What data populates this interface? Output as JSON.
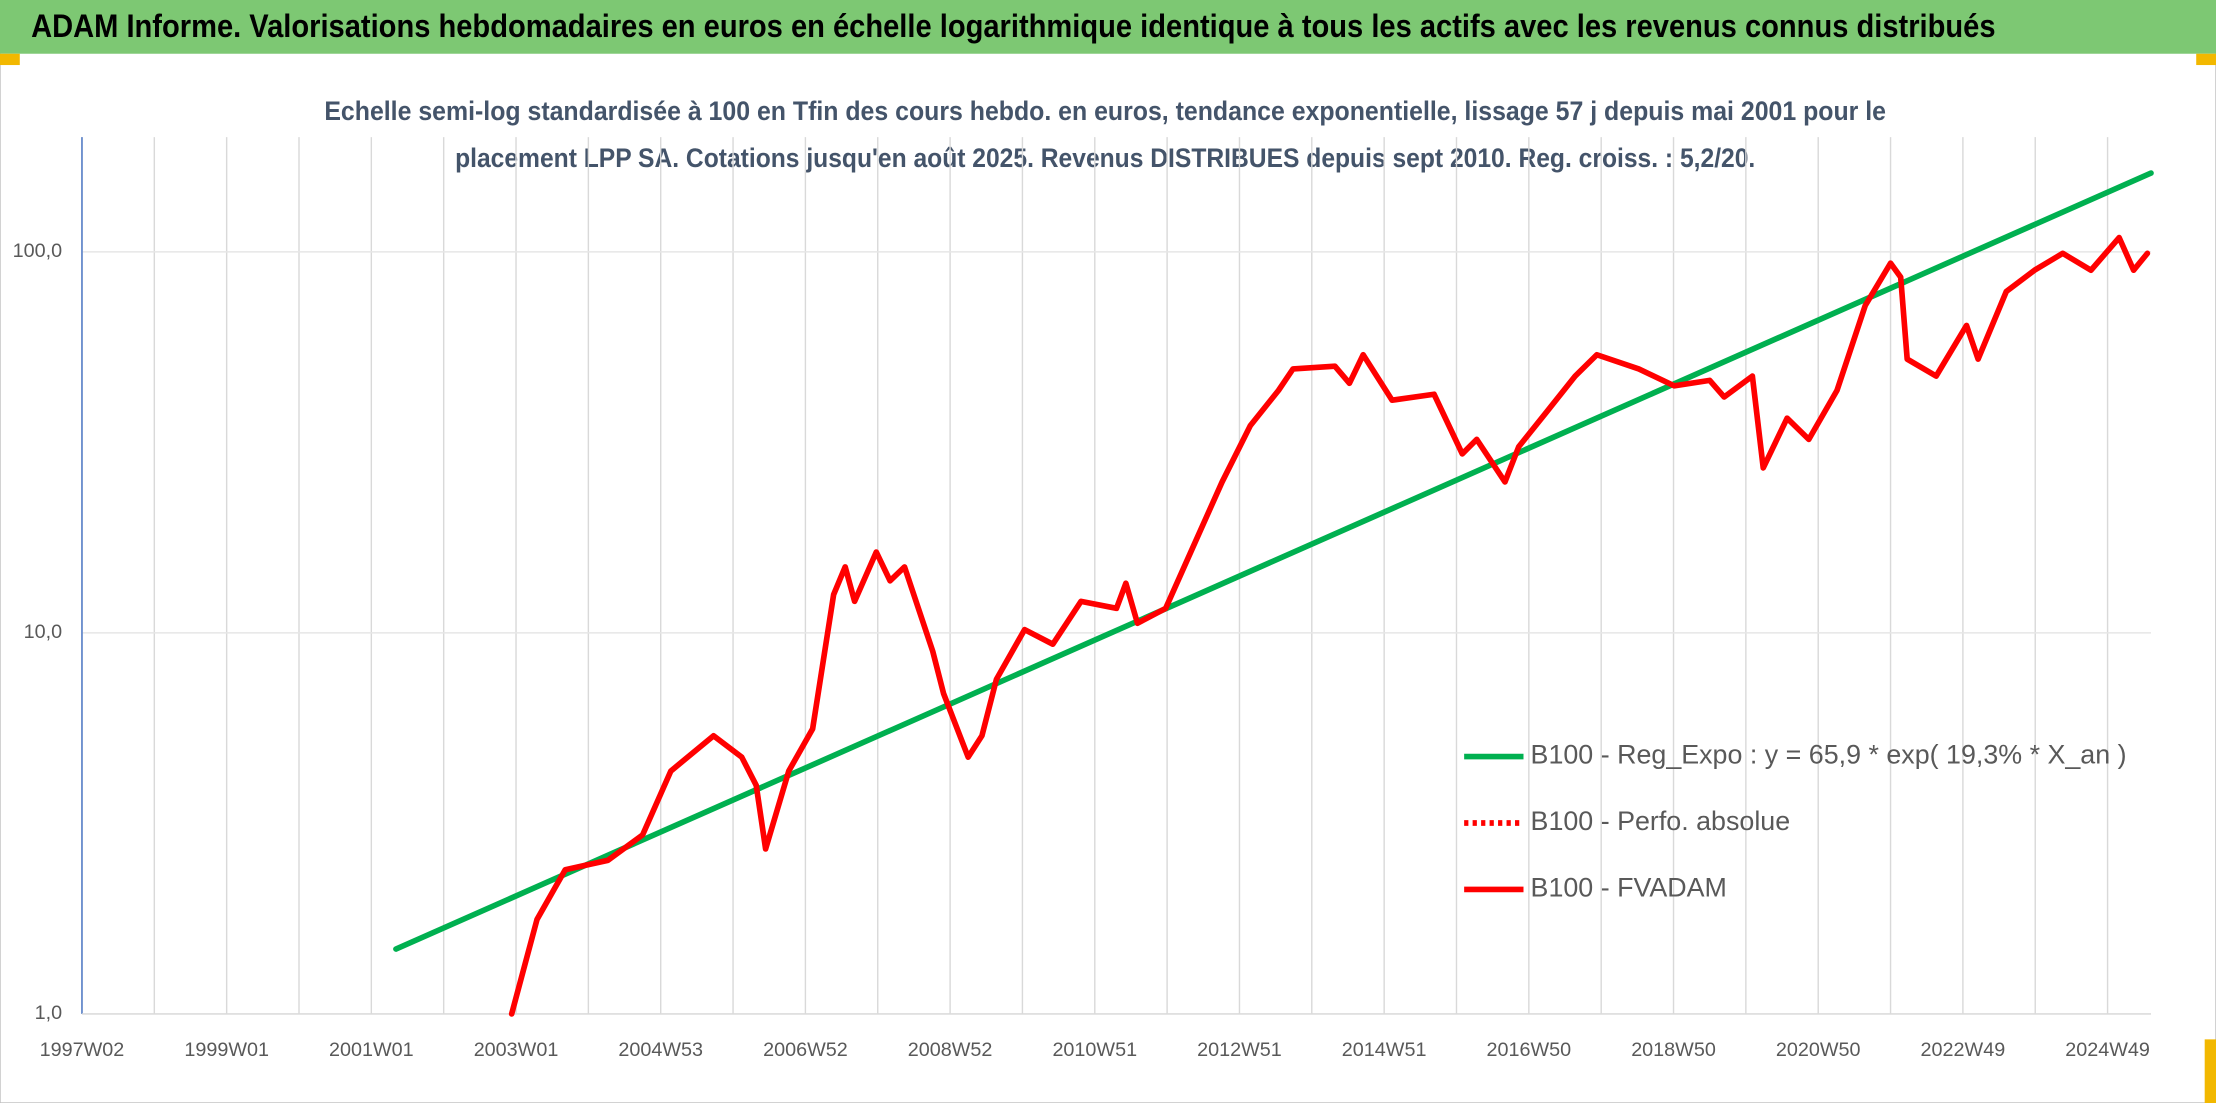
{
  "chart_data": {
    "type": "line",
    "title": "ADAM Informe. Valorisations hebdomadaires en euros en échelle logarithmique identique à tous les actifs avec les revenus connus distribués",
    "subtitle": [
      "Echelle semi-log standardisée à 100 en Tfin des cours hebdo. en euros, tendance exponentielle, lissage 57 j depuis mai 2001 pour le",
      "placement LPP SA. Cotations jusqu'en août 2025. Revenus DISTRIBUES depuis sept 2010. Reg. croiss. : 5,2/20."
    ],
    "log_scale": true,
    "grid": true,
    "legend": "right",
    "xlim": [
      1997.0,
      2025.6
    ],
    "xticks": [
      {
        "value": 1997,
        "label": "1997W02"
      },
      {
        "value": 1999,
        "label": "1999W01"
      },
      {
        "value": 2001,
        "label": "2001W01"
      },
      {
        "value": 2003,
        "label": "2003W01"
      },
      {
        "value": 2005,
        "label": "2004W53"
      },
      {
        "value": 2007,
        "label": "2006W52"
      },
      {
        "value": 2009,
        "label": "2008W52"
      },
      {
        "value": 2011,
        "label": "2010W51"
      },
      {
        "value": 2013,
        "label": "2012W51"
      },
      {
        "value": 2015,
        "label": "2014W51"
      },
      {
        "value": 2017,
        "label": "2016W50"
      },
      {
        "value": 2019,
        "label": "2018W50"
      },
      {
        "value": 2021,
        "label": "2020W50"
      },
      {
        "value": 2023,
        "label": "2022W49"
      },
      {
        "value": 2025,
        "label": "2024W49"
      }
    ],
    "xgrid": [
      1998,
      2000,
      2002,
      2004,
      2006,
      2008,
      2010,
      2012,
      2014,
      2016,
      2018,
      2020,
      2022,
      2024
    ],
    "ylim": [
      1,
      200
    ],
    "yticks": [
      {
        "value": 1,
        "label": "1,0"
      },
      {
        "value": 10,
        "label": "10,0"
      },
      {
        "value": 100,
        "label": "100,0"
      }
    ],
    "series": [
      {
        "name": "B100 - Reg_Expo : y = 65,9 * exp( 19,3% *  X_an )",
        "color": "#00b050",
        "style": "solid",
        "x": [
          2001.34,
          2025.6
        ],
        "values": [
          1.48,
          161
        ]
      },
      {
        "name": "B100 - Perfo. absolue",
        "color": "#ff0000",
        "style": "dotted",
        "x": [],
        "values": []
      },
      {
        "name": "B100 - FVADAM",
        "color": "#ff0000",
        "style": "solid",
        "x": [
          2002.94,
          2003.29,
          2003.68,
          2004.27,
          2004.75,
          2005.14,
          2005.73,
          2006.12,
          2006.32,
          2006.45,
          2006.77,
          2007.1,
          2007.39,
          2007.55,
          2007.68,
          2007.98,
          2008.17,
          2008.37,
          2008.76,
          2008.91,
          2009.25,
          2009.44,
          2009.64,
          2010.03,
          2010.42,
          2010.81,
          2011.3,
          2011.43,
          2011.59,
          2011.98,
          2012.37,
          2012.76,
          2013.15,
          2013.54,
          2013.74,
          2014.32,
          2014.52,
          2014.71,
          2015.11,
          2015.69,
          2016.08,
          2016.28,
          2016.67,
          2016.86,
          2017.25,
          2017.64,
          2017.94,
          2018.52,
          2019.01,
          2019.5,
          2019.7,
          2020.09,
          2020.24,
          2020.57,
          2020.87,
          2021.26,
          2021.65,
          2022.0,
          2022.14,
          2022.23,
          2022.63,
          2023.05,
          2023.21,
          2023.6,
          2023.99,
          2024.38,
          2024.77,
          2025.16,
          2025.36,
          2025.55
        ],
        "values": [
          1.0,
          1.77,
          2.39,
          2.53,
          2.95,
          4.34,
          5.37,
          4.72,
          3.98,
          2.71,
          4.34,
          5.6,
          12.6,
          14.9,
          12.1,
          16.3,
          13.7,
          14.9,
          8.95,
          6.93,
          4.72,
          5.37,
          7.55,
          10.2,
          9.34,
          12.1,
          11.6,
          13.5,
          10.6,
          11.6,
          17.0,
          24.9,
          35.0,
          43.3,
          49.3,
          50.1,
          45.2,
          53.7,
          40.8,
          42.3,
          29.5,
          32.2,
          24.9,
          30.8,
          38.1,
          47.2,
          53.7,
          49.3,
          44.5,
          46.0,
          41.6,
          47.2,
          27.1,
          36.6,
          32.2,
          43.3,
          72.3,
          93.4,
          85.8,
          52.3,
          47.2,
          64.1,
          52.3,
          78.7,
          89.5,
          99.1,
          89.5,
          109,
          89.5,
          99.1
        ]
      }
    ]
  }
}
